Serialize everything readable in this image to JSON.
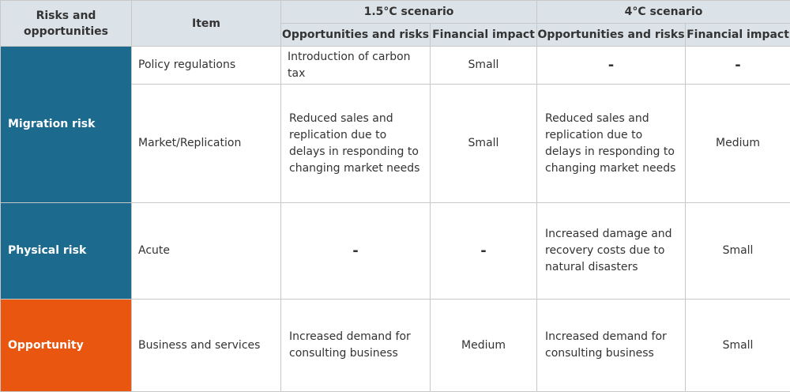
{
  "header": {
    "risks_and_opportunities": "Risks and opportunities",
    "item": "Item",
    "scenario_15": "1.5°C scenario",
    "scenario_4": "4°C scenario",
    "opportunities_and_risks": "Opportunities and risks",
    "financial_impact": "Financial impact"
  },
  "categories": {
    "migration_risk": "Migration risk",
    "physical_risk": "Physical risk",
    "opportunity": "Opportunity"
  },
  "colors": {
    "risk": "#1c6a8d",
    "opportunity": "#e8560f",
    "header_bg": "#dce3e8"
  },
  "rows": [
    {
      "item": "Policy regulations",
      "s15_text": "Introduction of carbon tax",
      "s15_impact": "Small",
      "s4_text": "-",
      "s4_impact": "-"
    },
    {
      "item": "Market/Replication",
      "s15_text": "Reduced sales and replication due to delays in responding to changing market needs",
      "s15_impact": "Small",
      "s4_text": "Reduced sales and replication due to delays in responding to changing market needs",
      "s4_impact": "Medium"
    },
    {
      "item": "Acute",
      "s15_text": "-",
      "s15_impact": "-",
      "s4_text": "Increased damage and recovery costs due to natural disasters",
      "s4_impact": "Small"
    },
    {
      "item": "Business and services",
      "s15_text": "Increased demand for consulting business",
      "s15_impact": "Medium",
      "s4_text": "Increased demand for consulting business",
      "s4_impact": "Small"
    }
  ]
}
